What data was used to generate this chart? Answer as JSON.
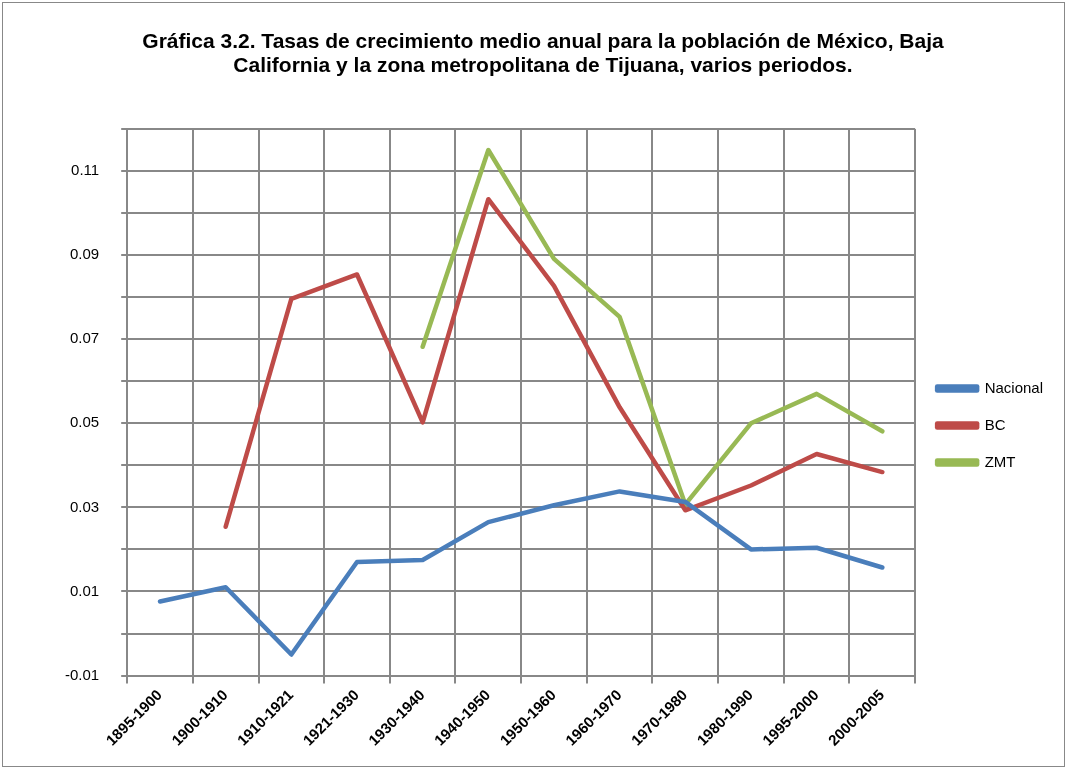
{
  "chart_data": {
    "type": "line",
    "title": "Gráfica 3.2. Tasas de crecimiento medio anual para la población de México, Baja California y la zona metropolitana de Tijuana, varios periodos.",
    "categories": [
      "1895-1900",
      "1900-1910",
      "1910-1921",
      "1921-1930",
      "1930-1940",
      "1940-1950",
      "1950-1960",
      "1960-1970",
      "1970-1980",
      "1980-1990",
      "1995-2000",
      "2000-2005"
    ],
    "series": [
      {
        "name": "Nacional",
        "color": "#4a7ebb",
        "values": [
          0.0076,
          0.011,
          -0.005,
          0.017,
          0.0175,
          0.0265,
          0.0305,
          0.0338,
          0.0313,
          0.02,
          0.0204,
          0.0157
        ]
      },
      {
        "name": "BC",
        "color": "#be4b48",
        "values": [
          null,
          0.0254,
          0.0796,
          0.0854,
          0.0502,
          0.1033,
          0.0827,
          0.0538,
          0.0293,
          0.0352,
          0.0427,
          0.0384
        ]
      },
      {
        "name": "ZMT",
        "color": "#98b954",
        "values": [
          null,
          null,
          null,
          null,
          0.0682,
          0.115,
          0.0891,
          0.0753,
          0.0307,
          0.05,
          0.057,
          0.0481
        ]
      }
    ],
    "ylim": [
      -0.01,
      0.12
    ],
    "yticks": [
      -0.01,
      {
        "value": 0,
        "label": null
      },
      0.01,
      {
        "value": 0.02,
        "label": null
      },
      0.03,
      {
        "value": 0.04,
        "label": null
      },
      0.05,
      {
        "value": 0.06,
        "label": null
      },
      0.07,
      {
        "value": 0.08,
        "label": null
      },
      0.09,
      {
        "value": 0.1,
        "label": null
      },
      0.11,
      {
        "value": 0.12,
        "label": null
      }
    ],
    "grid": true,
    "legend": "right",
    "marker": "none",
    "line_style": "solid"
  }
}
